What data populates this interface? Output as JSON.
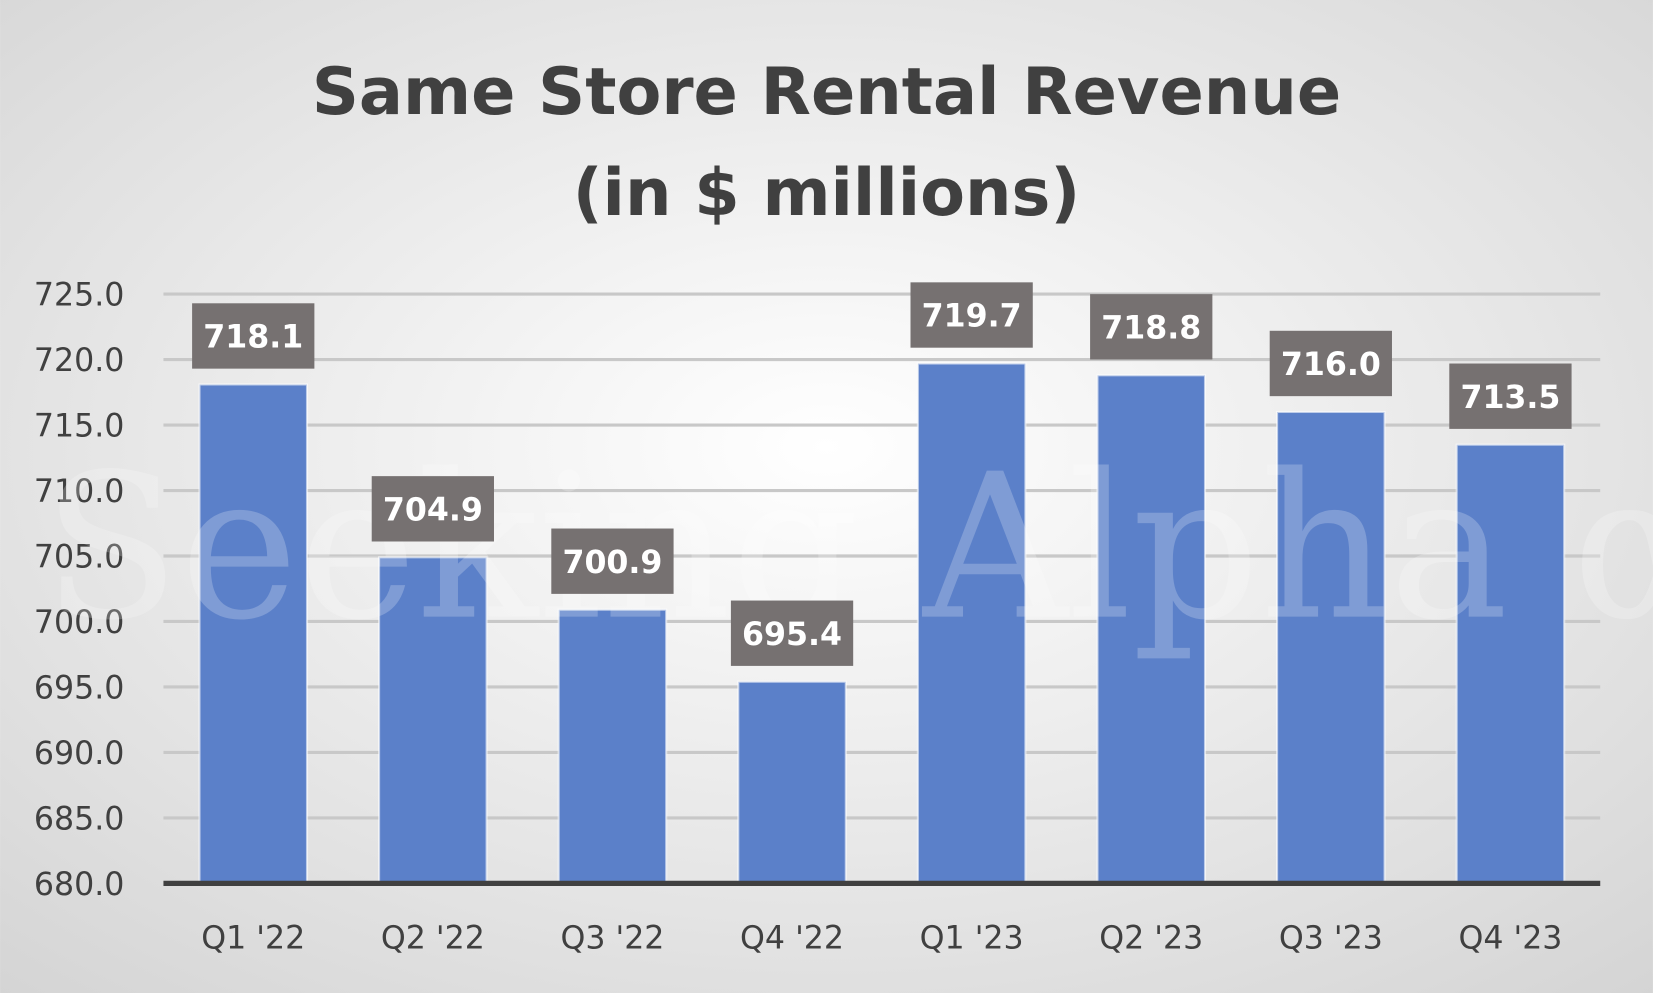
{
  "chart_data": {
    "type": "bar",
    "title": "Same Store Rental Revenue",
    "subtitle": "(in $ millions)",
    "xlabel": "",
    "ylabel": "",
    "categories": [
      "Q1 '22",
      "Q2 '22",
      "Q3 '22",
      "Q4 '22",
      "Q1 '23",
      "Q2 '23",
      "Q3 '23",
      "Q4 '23"
    ],
    "values": [
      718.1,
      704.9,
      700.9,
      695.4,
      719.7,
      718.8,
      716.0,
      713.5
    ],
    "data_labels": [
      "718.1",
      "704.9",
      "700.9",
      "695.4",
      "719.7",
      "718.8",
      "716.0",
      "713.5"
    ],
    "ylim": [
      680,
      725
    ],
    "yticks": [
      "680.0",
      "685.0",
      "690.0",
      "695.0",
      "700.0",
      "705.0",
      "710.0",
      "715.0",
      "720.0",
      "725.0"
    ],
    "grid": true,
    "legend": "none",
    "colors": {
      "bar": "#5b80c9",
      "label_bg": "#767171",
      "grid": "#c8c8c8",
      "axis": "#404040"
    }
  },
  "watermark": "Seeking Alpha α"
}
